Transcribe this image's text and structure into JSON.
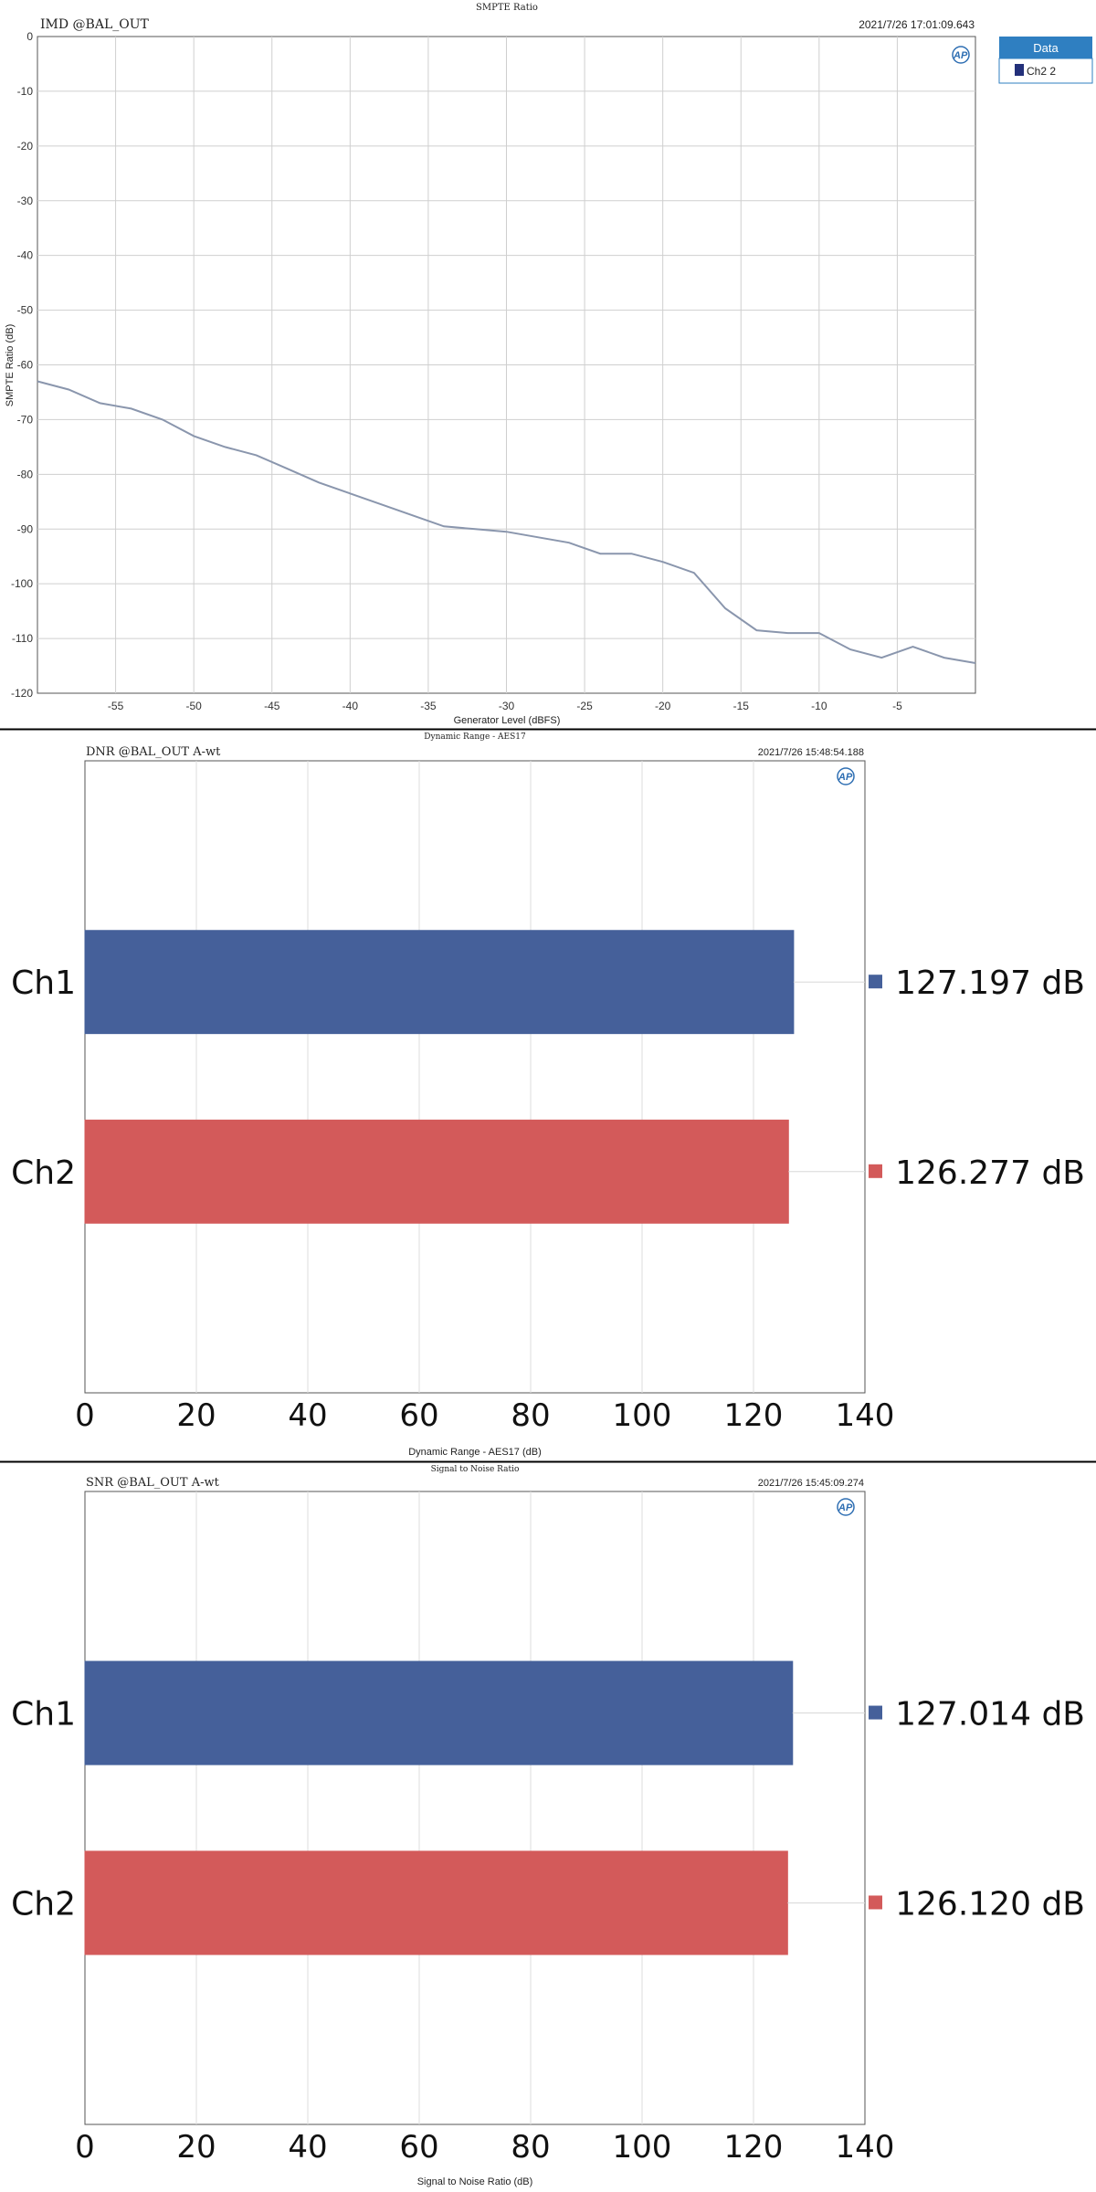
{
  "colors": {
    "ch1": "#45609a",
    "ch2": "#d35a5a",
    "line": "#8a96ad",
    "legend_header": "#2f7fc1",
    "legend_swatch": "#23307a"
  },
  "icons": {
    "logo": "ap-logo-icon"
  },
  "charts": [
    {
      "title": "SMPTE Ratio",
      "name": "IMD @BAL_OUT",
      "timestamp": "2021/7/26 17:01:09.643",
      "xlabel": "Generator Level (dBFS)",
      "ylabel": "SMPTE Ratio (dB)",
      "legend_title": "Data",
      "legend_entry": "Ch2 2"
    },
    {
      "title": "Dynamic Range - AES17",
      "name": "DNR @BAL_OUT A-wt",
      "timestamp": "2021/7/26 15:48:54.188",
      "xlabel": "Dynamic Range - AES17 (dB)",
      "value_labels": [
        "127.197 dB",
        "126.277 dB"
      ]
    },
    {
      "title": "Signal to Noise Ratio",
      "name": "SNR @BAL_OUT A-wt",
      "timestamp": "2021/7/26 15:45:09.274",
      "xlabel": "Signal to Noise Ratio (dB)",
      "value_labels": [
        "127.014 dB",
        "126.120 dB"
      ]
    }
  ],
  "chart_data": [
    {
      "type": "line",
      "title": "SMPTE Ratio",
      "xlabel": "Generator Level (dBFS)",
      "ylabel": "SMPTE Ratio (dB)",
      "xlim": [
        -60,
        0
      ],
      "ylim": [
        -120,
        0
      ],
      "xticks": [
        -55,
        -50,
        -45,
        -40,
        -35,
        -30,
        -25,
        -20,
        -15,
        -10,
        -5
      ],
      "yticks": [
        0,
        -10,
        -20,
        -30,
        -40,
        -50,
        -60,
        -70,
        -80,
        -90,
        -100,
        -110,
        -120
      ],
      "grid": true,
      "legend_position": "right",
      "series": [
        {
          "name": "Ch2 2",
          "x": [
            -60,
            -58,
            -56,
            -54,
            -52,
            -50,
            -48,
            -46,
            -44,
            -42,
            -40,
            -38,
            -36,
            -34,
            -32,
            -30,
            -28,
            -26,
            -24,
            -22,
            -20,
            -18,
            -16,
            -14,
            -12,
            -10,
            -8,
            -6,
            -4,
            -2,
            0
          ],
          "y": [
            -63,
            -64.5,
            -67,
            -68,
            -70,
            -73,
            -75,
            -76.5,
            -79,
            -81.5,
            -83.5,
            -85.5,
            -87.5,
            -89.5,
            -90,
            -90.5,
            -91.5,
            -92.5,
            -94.5,
            -94.5,
            -96,
            -98,
            -104.5,
            -108.5,
            -109,
            -109,
            -112,
            -113.5,
            -111.5,
            -113.5,
            -114.5
          ]
        }
      ]
    },
    {
      "type": "bar",
      "orientation": "horizontal",
      "title": "Dynamic Range - AES17",
      "xlabel": "Dynamic Range - AES17 (dB)",
      "categories": [
        "Ch1",
        "Ch2"
      ],
      "values": [
        127.197,
        126.277
      ],
      "xlim": [
        0,
        140
      ],
      "xticks": [
        0,
        20,
        40,
        60,
        80,
        100,
        120,
        140
      ],
      "grid": true
    },
    {
      "type": "bar",
      "orientation": "horizontal",
      "title": "Signal to Noise Ratio",
      "xlabel": "Signal to Noise Ratio (dB)",
      "categories": [
        "Ch1",
        "Ch2"
      ],
      "values": [
        127.014,
        126.12
      ],
      "xlim": [
        0,
        140
      ],
      "xticks": [
        0,
        20,
        40,
        60,
        80,
        100,
        120,
        140
      ],
      "grid": true
    }
  ]
}
